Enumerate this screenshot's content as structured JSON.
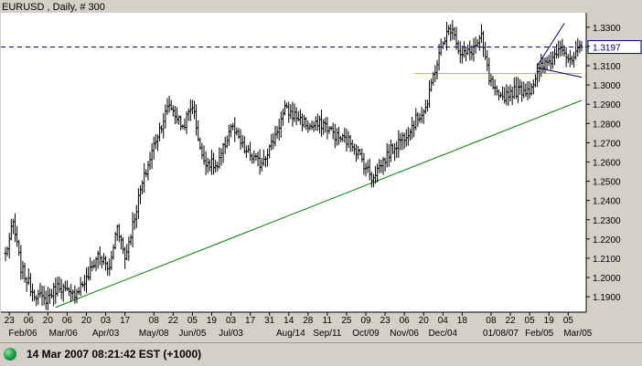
{
  "chart_data": {
    "type": "candlestick",
    "title": "EURUSD , Daily, # 300",
    "current_price": 1.3197,
    "current_price_label": "1.3197",
    "ylim": [
      1.182,
      1.3375
    ],
    "y_ticks": [
      1.19,
      1.2,
      1.21,
      1.22,
      1.23,
      1.24,
      1.25,
      1.26,
      1.27,
      1.28,
      1.29,
      1.3,
      1.31,
      1.32,
      1.33
    ],
    "y_tick_labels": [
      "1.1900",
      "1.2000",
      "1.2100",
      "1.2200",
      "1.2300",
      "1.2400",
      "1.2500",
      "1.2600",
      "1.2700",
      "1.2800",
      "1.2900",
      "1.3000",
      "1.3100",
      "1.3200",
      "1.3300"
    ],
    "x_range_bars": 300,
    "x_ticks_top": [
      {
        "bar": 2,
        "label": "23"
      },
      {
        "bar": 12,
        "label": "06"
      },
      {
        "bar": 22,
        "label": "20"
      },
      {
        "bar": 32,
        "label": "06"
      },
      {
        "bar": 42,
        "label": "20"
      },
      {
        "bar": 52,
        "label": "03"
      },
      {
        "bar": 62,
        "label": "17"
      },
      {
        "bar": 77,
        "label": "08"
      },
      {
        "bar": 87,
        "label": "22"
      },
      {
        "bar": 97,
        "label": "05"
      },
      {
        "bar": 107,
        "label": "19"
      },
      {
        "bar": 117,
        "label": "03"
      },
      {
        "bar": 127,
        "label": "17"
      },
      {
        "bar": 137,
        "label": "31"
      },
      {
        "bar": 147,
        "label": "14"
      },
      {
        "bar": 157,
        "label": "28"
      },
      {
        "bar": 167,
        "label": "11"
      },
      {
        "bar": 177,
        "label": "25"
      },
      {
        "bar": 187,
        "label": "09"
      },
      {
        "bar": 197,
        "label": "23"
      },
      {
        "bar": 207,
        "label": "06"
      },
      {
        "bar": 217,
        "label": "20"
      },
      {
        "bar": 227,
        "label": "04"
      },
      {
        "bar": 237,
        "label": "18"
      },
      {
        "bar": 252,
        "label": "08"
      },
      {
        "bar": 262,
        "label": "22"
      },
      {
        "bar": 272,
        "label": "05"
      },
      {
        "bar": 282,
        "label": "19"
      },
      {
        "bar": 292,
        "label": "05"
      }
    ],
    "x_ticks_bottom": [
      {
        "bar": 9,
        "label": "Feb/06"
      },
      {
        "bar": 30,
        "label": "Mar/06"
      },
      {
        "bar": 52,
        "label": "Apr/03"
      },
      {
        "bar": 77,
        "label": "May/08"
      },
      {
        "bar": 97,
        "label": "Jun/05"
      },
      {
        "bar": 117,
        "label": "Jul/03"
      },
      {
        "bar": 148,
        "label": "Aug/14"
      },
      {
        "bar": 167,
        "label": "Sep/11"
      },
      {
        "bar": 187,
        "label": "Oct/09"
      },
      {
        "bar": 207,
        "label": "Nov/06"
      },
      {
        "bar": 227,
        "label": "Dec/04"
      },
      {
        "bar": 257,
        "label": "01/08/07"
      },
      {
        "bar": 277,
        "label": "Feb/05"
      },
      {
        "bar": 297,
        "label": "Mar/05"
      }
    ],
    "anchors": [
      [
        0,
        1.212
      ],
      [
        4,
        1.228
      ],
      [
        8,
        1.205
      ],
      [
        14,
        1.193
      ],
      [
        20,
        1.188
      ],
      [
        28,
        1.196
      ],
      [
        34,
        1.19
      ],
      [
        42,
        1.199
      ],
      [
        48,
        1.212
      ],
      [
        54,
        1.204
      ],
      [
        58,
        1.228
      ],
      [
        62,
        1.21
      ],
      [
        70,
        1.245
      ],
      [
        78,
        1.272
      ],
      [
        85,
        1.29
      ],
      [
        92,
        1.278
      ],
      [
        97,
        1.29
      ],
      [
        102,
        1.262
      ],
      [
        110,
        1.257
      ],
      [
        117,
        1.279
      ],
      [
        124,
        1.266
      ],
      [
        132,
        1.259
      ],
      [
        138,
        1.269
      ],
      [
        145,
        1.287
      ],
      [
        152,
        1.283
      ],
      [
        158,
        1.278
      ],
      [
        165,
        1.28
      ],
      [
        172,
        1.273
      ],
      [
        180,
        1.27
      ],
      [
        190,
        1.252
      ],
      [
        200,
        1.266
      ],
      [
        208,
        1.275
      ],
      [
        214,
        1.283
      ],
      [
        219,
        1.29
      ],
      [
        222,
        1.305
      ],
      [
        228,
        1.325
      ],
      [
        232,
        1.331
      ],
      [
        236,
        1.315
      ],
      [
        241,
        1.317
      ],
      [
        247,
        1.324
      ],
      [
        251,
        1.303
      ],
      [
        256,
        1.292
      ],
      [
        261,
        1.296
      ],
      [
        266,
        1.297
      ],
      [
        272,
        1.298
      ],
      [
        278,
        1.309
      ],
      [
        284,
        1.314
      ],
      [
        288,
        1.322
      ],
      [
        293,
        1.311
      ],
      [
        299,
        1.3197
      ]
    ],
    "trend_lines": [
      {
        "name": "uptrend",
        "color": "#008000",
        "points": [
          [
            26,
            1.1845
          ],
          [
            299,
            1.292
          ]
        ]
      },
      {
        "name": "support",
        "color": "#c8c800",
        "points": [
          [
            212,
            1.306
          ],
          [
            299,
            1.306
          ]
        ]
      },
      {
        "name": "wedge-upper",
        "color": "#000080",
        "points": [
          [
            276,
            1.31
          ],
          [
            290,
            1.332
          ]
        ]
      },
      {
        "name": "wedge-lower",
        "color": "#000080",
        "points": [
          [
            276,
            1.309
          ],
          [
            299,
            1.304
          ]
        ]
      }
    ],
    "colors": {
      "plot_background": "#ffffff",
      "bars": "#000000",
      "current_price_line": "#000080",
      "price_label_bg": "#ffffff",
      "frame_background": "#d4d0c8"
    },
    "grid": false,
    "legend": "none"
  },
  "status": {
    "icon": "green-status-icon",
    "text": "14 Mar 2007 08:21:42  EST (+1000)"
  }
}
